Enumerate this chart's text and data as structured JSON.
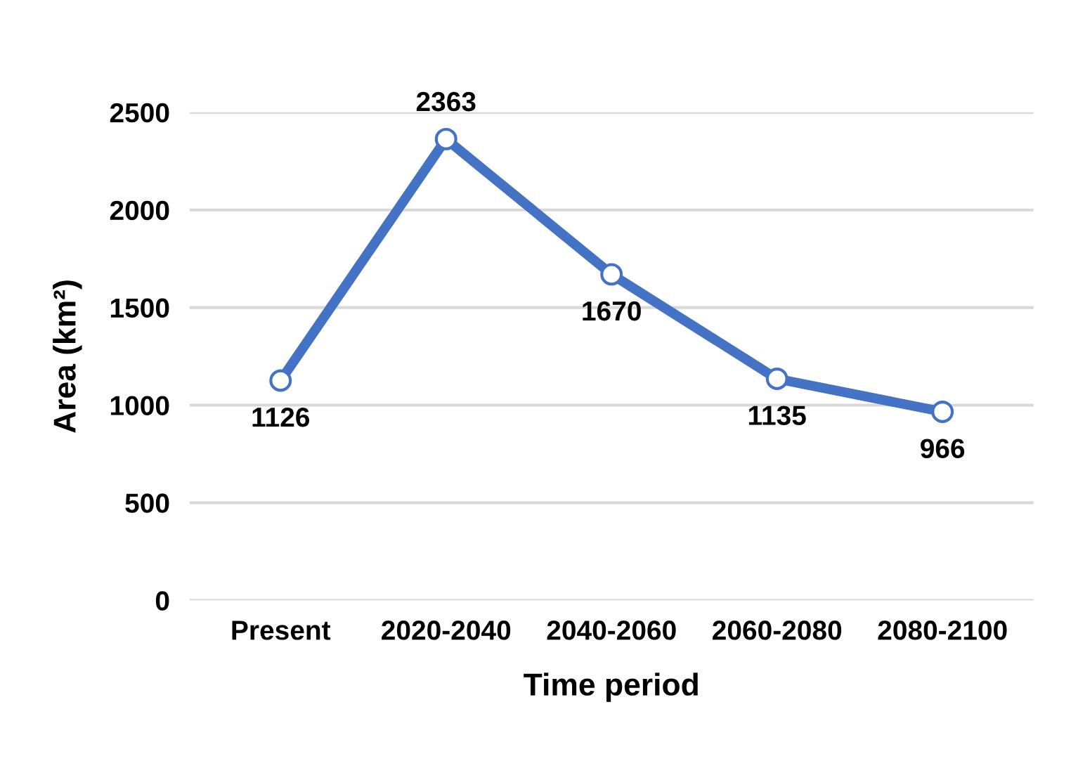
{
  "chart_data": {
    "type": "line",
    "xlabel": "Time period",
    "ylabel": "Area (km²)",
    "categories": [
      "Present",
      "2020-2040",
      "2040-2060",
      "2060-2080",
      "2080-2100"
    ],
    "series": [
      {
        "color": "#4472c4",
        "values": [
          1126,
          2363,
          1670,
          1135,
          966
        ]
      }
    ],
    "ylim": [
      0,
      2500
    ],
    "yticks": [
      0,
      500,
      1000,
      1500,
      2000,
      2500
    ],
    "grid": "y",
    "marker": "circle",
    "line_style": "solid",
    "data_labels": true,
    "legend": false
  }
}
